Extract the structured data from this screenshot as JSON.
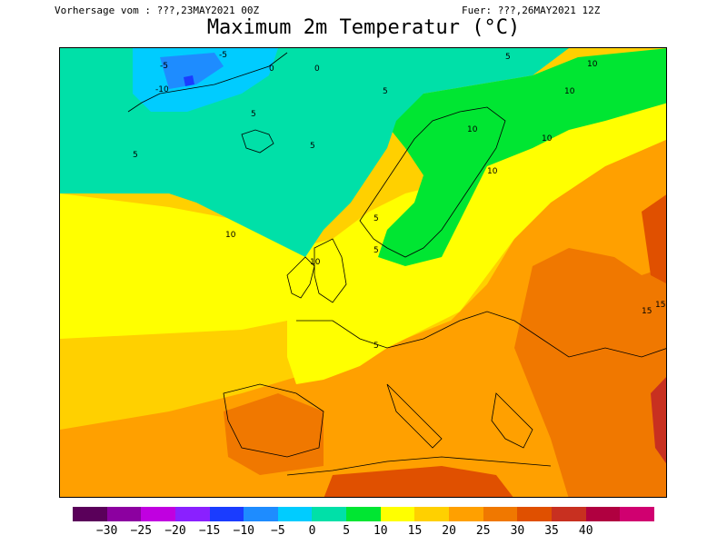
{
  "header": {
    "left": "Vorhersage vom : ???,23MAY2021 00Z",
    "right": "Fuer: ???,26MAY2021 12Z",
    "title": "Maximum 2m Temperatur (°C)"
  },
  "legend": {
    "colors": [
      "#5a005a",
      "#8c00a0",
      "#c000e0",
      "#8a20ff",
      "#1a3cff",
      "#1e8cff",
      "#00ccff",
      "#00e0a8",
      "#00e632",
      "#ffff00",
      "#ffd000",
      "#ffa000",
      "#f07800",
      "#e05000",
      "#c83020",
      "#b00040",
      "#d00070"
    ],
    "labels": [
      "−30",
      "−25",
      "−20",
      "−15",
      "−10",
      "−5",
      "0",
      "5",
      "10",
      "15",
      "20",
      "25",
      "30",
      "35",
      "40"
    ]
  },
  "map": {
    "colors": {
      "greenland_ice": "#1e8cff",
      "cold_cyan": "#00ccff",
      "teal": "#00e0a8",
      "green": "#00e632",
      "yellow": "#ffff00",
      "gold": "#ffd000",
      "orange": "#ffa000",
      "dark_orange": "#f07800",
      "red_orange": "#e05000",
      "red": "#c83020",
      "blue_core": "#1a3cff"
    },
    "isotherm_labels": [
      "-10",
      "-5",
      "-5",
      "0",
      "0",
      "5",
      "5",
      "5",
      "5",
      "5",
      "5",
      "5",
      "5",
      "10",
      "10",
      "10",
      "10",
      "10",
      "10",
      "10",
      "15",
      "15"
    ]
  }
}
